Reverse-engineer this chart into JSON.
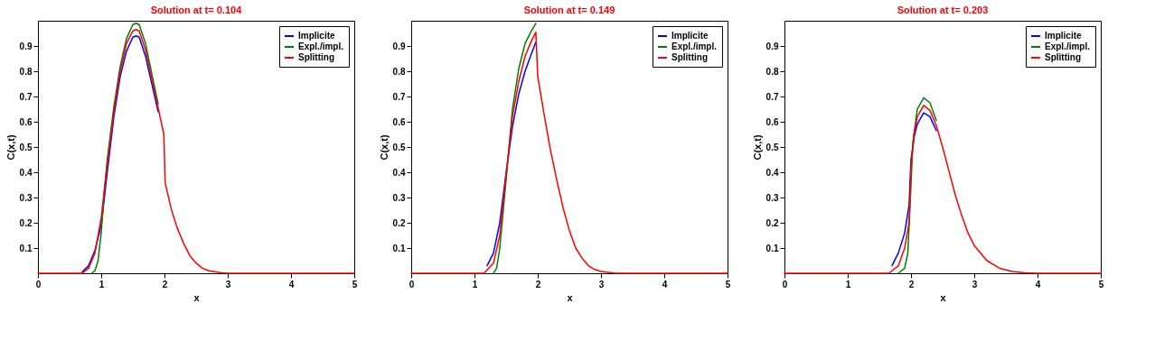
{
  "chart_data": [
    {
      "type": "line",
      "title": "Solution at t= 0.104",
      "xlabel": "x",
      "ylabel": "C(x,t)",
      "xlim": [
        0,
        5
      ],
      "ylim": [
        0,
        1
      ],
      "xticks": [
        0,
        1,
        2,
        3,
        4,
        5
      ],
      "yticks": [
        0.1,
        0.2,
        0.3,
        0.4,
        0.5,
        0.6,
        0.7,
        0.8,
        0.9
      ],
      "legend": "top right",
      "series": [
        {
          "name": "Implicite",
          "color": "#0000ff",
          "x": [
            0.7,
            0.8,
            0.9,
            1.0,
            1.1,
            1.2,
            1.3,
            1.4,
            1.5,
            1.55,
            1.6,
            1.7,
            1.8,
            1.9
          ],
          "values": [
            0.005,
            0.03,
            0.09,
            0.19,
            0.41,
            0.62,
            0.78,
            0.88,
            0.935,
            0.94,
            0.935,
            0.86,
            0.75,
            0.64
          ]
        },
        {
          "name": "Expl./impl.",
          "color": "#008000",
          "x": [
            0.85,
            0.9,
            0.95,
            1.0,
            1.05,
            1.1,
            1.2,
            1.3,
            1.4,
            1.5,
            1.55,
            1.6,
            1.7,
            1.8,
            1.9
          ],
          "values": [
            0,
            0.01,
            0.05,
            0.16,
            0.33,
            0.46,
            0.66,
            0.82,
            0.93,
            0.985,
            0.99,
            0.985,
            0.91,
            0.79,
            0.67
          ]
        },
        {
          "name": "Splitting",
          "color": "#ff0000",
          "x": [
            0,
            0.7,
            0.8,
            0.9,
            1.0,
            1.1,
            1.2,
            1.3,
            1.4,
            1.5,
            1.55,
            1.6,
            1.7,
            1.8,
            1.9,
            1.99,
            2.01,
            2.1,
            2.2,
            2.3,
            2.4,
            2.5,
            2.6,
            2.7,
            2.9,
            3.0,
            5
          ],
          "values": [
            0,
            0,
            0.02,
            0.08,
            0.22,
            0.44,
            0.64,
            0.8,
            0.91,
            0.96,
            0.965,
            0.96,
            0.885,
            0.77,
            0.655,
            0.55,
            0.36,
            0.26,
            0.18,
            0.12,
            0.07,
            0.04,
            0.02,
            0.01,
            0.002,
            0,
            0
          ]
        }
      ]
    },
    {
      "type": "line",
      "title": "Solution at t= 0.149",
      "xlabel": "x",
      "ylabel": "C(x,t)",
      "xlim": [
        0,
        5
      ],
      "ylim": [
        0,
        1
      ],
      "xticks": [
        0,
        1,
        2,
        3,
        4,
        5
      ],
      "yticks": [
        0.1,
        0.2,
        0.3,
        0.4,
        0.5,
        0.6,
        0.7,
        0.8,
        0.9
      ],
      "legend": "top right",
      "series": [
        {
          "name": "Implicite",
          "color": "#0000ff",
          "x": [
            1.2,
            1.3,
            1.4,
            1.5,
            1.6,
            1.7,
            1.8,
            1.9,
            1.97
          ],
          "values": [
            0.03,
            0.08,
            0.2,
            0.4,
            0.58,
            0.71,
            0.8,
            0.87,
            0.915
          ]
        },
        {
          "name": "Expl./impl.",
          "color": "#008000",
          "x": [
            1.3,
            1.35,
            1.4,
            1.5,
            1.6,
            1.7,
            1.8,
            1.9,
            1.97
          ],
          "values": [
            0,
            0.02,
            0.1,
            0.37,
            0.65,
            0.81,
            0.91,
            0.96,
            0.99
          ]
        },
        {
          "name": "Splitting",
          "color": "#ff0000",
          "x": [
            0,
            1.15,
            1.3,
            1.4,
            1.5,
            1.6,
            1.7,
            1.8,
            1.9,
            1.97,
            2.0,
            2.1,
            2.2,
            2.3,
            2.4,
            2.5,
            2.6,
            2.7,
            2.8,
            2.9,
            3.0,
            3.2,
            3.4,
            5
          ],
          "values": [
            0,
            0,
            0.04,
            0.15,
            0.39,
            0.62,
            0.76,
            0.86,
            0.92,
            0.955,
            0.78,
            0.63,
            0.49,
            0.37,
            0.26,
            0.17,
            0.1,
            0.06,
            0.03,
            0.015,
            0.007,
            0.001,
            0,
            0
          ]
        }
      ]
    },
    {
      "type": "line",
      "title": "Solution at t= 0.203",
      "xlabel": "x",
      "ylabel": "C(x,t)",
      "xlim": [
        0,
        5
      ],
      "ylim": [
        0,
        1
      ],
      "xticks": [
        0,
        1,
        2,
        3,
        4,
        5
      ],
      "yticks": [
        0.1,
        0.2,
        0.3,
        0.4,
        0.5,
        0.6,
        0.7,
        0.8,
        0.9
      ],
      "legend": "top right",
      "series": [
        {
          "name": "Implicite",
          "color": "#0000ff",
          "x": [
            1.7,
            1.8,
            1.9,
            1.97,
            2.0,
            2.05,
            2.1,
            2.2,
            2.3,
            2.4
          ],
          "values": [
            0.03,
            0.08,
            0.16,
            0.27,
            0.45,
            0.54,
            0.59,
            0.635,
            0.62,
            0.565
          ]
        },
        {
          "name": "Expl./impl.",
          "color": "#008000",
          "x": [
            1.8,
            1.9,
            1.95,
            2.0,
            2.03,
            2.1,
            2.2,
            2.3,
            2.4
          ],
          "values": [
            0,
            0.02,
            0.08,
            0.35,
            0.52,
            0.65,
            0.695,
            0.675,
            0.605
          ]
        },
        {
          "name": "Splitting",
          "color": "#ff0000",
          "x": [
            0,
            1.65,
            1.8,
            1.9,
            1.97,
            2.0,
            2.05,
            2.1,
            2.2,
            2.3,
            2.4,
            2.5,
            2.6,
            2.7,
            2.8,
            2.9,
            3.0,
            3.2,
            3.4,
            3.6,
            3.8,
            4.0,
            5
          ],
          "values": [
            0,
            0,
            0.03,
            0.1,
            0.2,
            0.42,
            0.55,
            0.62,
            0.665,
            0.645,
            0.585,
            0.5,
            0.405,
            0.31,
            0.23,
            0.16,
            0.11,
            0.05,
            0.02,
            0.007,
            0.002,
            0,
            0
          ]
        }
      ]
    }
  ]
}
